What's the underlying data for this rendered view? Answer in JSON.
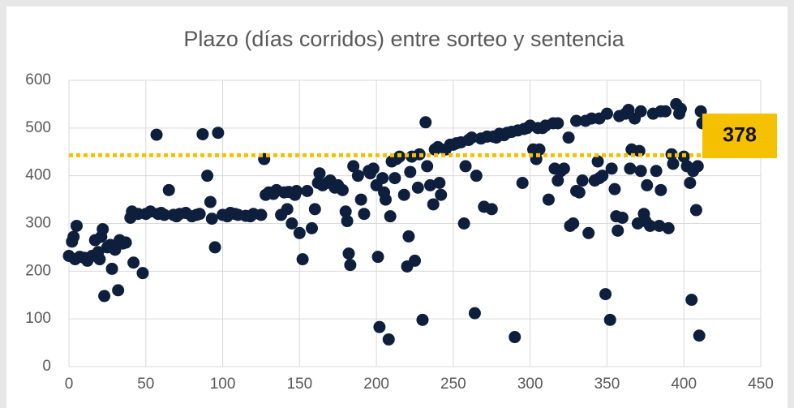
{
  "chart_data": {
    "type": "scatter",
    "title": "Plazo (días corridos) entre sorteo y sentencia",
    "color": "#0d1f3c",
    "grid": true,
    "xlim": [
      0,
      450
    ],
    "xticks": [
      0,
      50,
      100,
      150,
      200,
      250,
      300,
      350,
      400,
      450
    ],
    "ylim": [
      0,
      600
    ],
    "yticks": [
      0,
      100,
      200,
      300,
      400,
      500,
      600
    ],
    "reference_line": 443,
    "reference_color": "#f5c000",
    "annotation": "378",
    "x": [
      0,
      2,
      3,
      5,
      4,
      7,
      10,
      12,
      15,
      17,
      19,
      20,
      21,
      22,
      23,
      25,
      27,
      28,
      30,
      32,
      33,
      35,
      37,
      40,
      41,
      42,
      45,
      48,
      50,
      53,
      57,
      58,
      62,
      65,
      68,
      72,
      76,
      80,
      85,
      87,
      90,
      92,
      93,
      95,
      97,
      100,
      105,
      110,
      115,
      120,
      125,
      127,
      128,
      130,
      135,
      138,
      140,
      142,
      145,
      148,
      150,
      152,
      155,
      158,
      160,
      162,
      163,
      165,
      170,
      175,
      178,
      180,
      181,
      182,
      183,
      185,
      188,
      190,
      192,
      195,
      198,
      200,
      201,
      202,
      205,
      206,
      208,
      209,
      210,
      212,
      215,
      218,
      220,
      221,
      222,
      225,
      227,
      228,
      230,
      232,
      233,
      235,
      237,
      240,
      241,
      242,
      245,
      248,
      250,
      255,
      257,
      258,
      260,
      262,
      264,
      265,
      268,
      270,
      272,
      275,
      278,
      280,
      285,
      290,
      292,
      295,
      298,
      300,
      302,
      304,
      306,
      308,
      310,
      312,
      315,
      316,
      318,
      320,
      322,
      325,
      326,
      328,
      330,
      332,
      334,
      336,
      338,
      340,
      342,
      344,
      345,
      347,
      349,
      350,
      352,
      353,
      355,
      356,
      357,
      360,
      362,
      365,
      366,
      368,
      370,
      371,
      372,
      374,
      375,
      376,
      378,
      380,
      382,
      384,
      385,
      388,
      390,
      392,
      393,
      395,
      397,
      400,
      402,
      404,
      405,
      406,
      408,
      409,
      410,
      411,
      412,
      60,
      70,
      83,
      103,
      108,
      118,
      133,
      143,
      147,
      168,
      173,
      196,
      204,
      213,
      223,
      238,
      252,
      276,
      283,
      288,
      296,
      305,
      318,
      330,
      345,
      358,
      364,
      372,
      385,
      398
    ],
    "values": [
      232,
      262,
      272,
      295,
      225,
      230,
      228,
      222,
      232,
      265,
      240,
      225,
      272,
      288,
      148,
      250,
      255,
      205,
      245,
      160,
      265,
      258,
      260,
      312,
      325,
      218,
      320,
      196,
      320,
      325,
      486,
      320,
      318,
      370,
      318,
      320,
      322,
      315,
      320,
      487,
      400,
      345,
      310,
      250,
      490,
      318,
      322,
      318,
      316,
      320,
      318,
      435,
      360,
      365,
      370,
      318,
      365,
      330,
      300,
      368,
      280,
      225,
      368,
      290,
      330,
      385,
      405,
      380,
      390,
      380,
      370,
      325,
      305,
      237,
      213,
      420,
      400,
      350,
      320,
      410,
      415,
      380,
      230,
      83,
      365,
      350,
      57,
      315,
      430,
      395,
      440,
      360,
      210,
      273,
      408,
      222,
      375,
      445,
      98,
      512,
      420,
      380,
      340,
      460,
      385,
      360,
      455,
      465,
      465,
      470,
      300,
      420,
      475,
      480,
      112,
      400,
      478,
      335,
      482,
      330,
      480,
      488,
      490,
      62,
      495,
      385,
      500,
      505,
      455,
      435,
      455,
      500,
      505,
      350,
      510,
      415,
      390,
      410,
      415,
      480,
      295,
      300,
      368,
      365,
      390,
      515,
      280,
      520,
      390,
      430,
      395,
      400,
      152,
      530,
      98,
      415,
      372,
      315,
      285,
      312,
      530,
      415,
      455,
      520,
      300,
      452,
      410,
      320,
      305,
      380,
      295,
      530,
      410,
      295,
      370,
      535,
      290,
      445,
      425,
      550,
      530,
      440,
      420,
      385,
      140,
      410,
      328,
      420,
      65,
      535,
      510,
      322,
      315,
      318,
      315,
      320,
      315,
      362,
      366,
      360,
      385,
      375,
      405,
      395,
      435,
      440,
      455,
      468,
      482,
      485,
      492,
      498,
      500,
      510,
      515,
      520,
      525,
      538,
      535,
      535,
      540
    ]
  }
}
